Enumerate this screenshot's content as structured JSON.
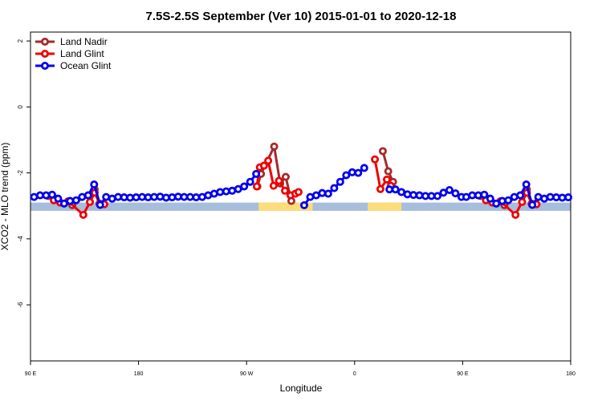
{
  "chart_data": {
    "type": "line",
    "title": "7.5S-2.5S September (Ver 10)   2015-01-01 to 2020-12-18",
    "x_label": "Longitude",
    "y_label": "XCO2 - MLO trend (ppm)",
    "xlim": [
      90,
      540
    ],
    "ylim": [
      -7.7,
      2.27
    ],
    "xticks": [
      {
        "value": 90,
        "label": "90 E"
      },
      180,
      {
        "value": 270,
        "label": "90 W"
      },
      {
        "value": 360,
        "label": "0"
      },
      {
        "value": 450,
        "label": "90 E"
      },
      {
        "value": 540,
        "label": "180"
      }
    ],
    "yticks": [
      2,
      0,
      -2,
      -4,
      -6
    ],
    "legend": "top-left",
    "band": {
      "y": [
        -3.15,
        -2.9
      ],
      "segments": [
        {
          "from": 90,
          "to": 540,
          "color": "#a6bddb"
        },
        {
          "from": 280,
          "to": 325,
          "color": "#fddc7a"
        },
        {
          "from": 371,
          "to": 399,
          "color": "#fddc7a"
        }
      ]
    },
    "series": [
      {
        "name": "Land Nadir",
        "color": "#a52a2a",
        "x": [
          104.7,
          110,
          124.8,
          143.5,
          200,
          279,
          282,
          293,
          298,
          302.6,
          307.3,
          340,
          383.5,
          388,
          392,
          430,
          464.7,
          470,
          484.8,
          503.5
        ],
        "values": [
          -2.7,
          -2.78,
          -2.98,
          -2.5,
          null,
          -2.41,
          -2.03,
          -1.2,
          -2.32,
          -2.12,
          -2.85,
          null,
          -1.34,
          -1.95,
          -2.27,
          null,
          -2.7,
          -2.78,
          -2.98,
          -2.5
        ]
      },
      {
        "name": "Land Glint",
        "color": "#ee0000",
        "x": [
          109.4,
          114.7,
          121.4,
          134,
          139.5,
          143.5,
          147.5,
          151.5,
          200,
          278.5,
          281,
          284.5,
          288,
          292.5,
          297,
          302,
          306.6,
          310.6,
          313.3,
          340,
          376.9,
          381.5,
          386.9,
          390.2,
          430,
          469.4,
          474.7,
          481.4,
          494,
          499.5,
          503.5,
          507.5,
          511.5
        ],
        "values": [
          -2.83,
          -2.9,
          -2.86,
          -3.27,
          -2.88,
          -2.6,
          -2.93,
          -2.95,
          null,
          -2.41,
          -1.83,
          -1.78,
          -1.63,
          -2.39,
          -2.24,
          -2.54,
          -2.68,
          -2.63,
          -2.58,
          null,
          -1.59,
          -2.49,
          -2.2,
          -2.39,
          null,
          -2.83,
          -2.9,
          -2.86,
          -3.27,
          -2.88,
          -2.6,
          -2.93,
          -2.95
        ]
      },
      {
        "name": "Ocean Glint",
        "color": "#0000ee",
        "x": [
          93,
          98,
          103,
          108,
          113,
          118,
          123,
          128,
          133,
          138,
          143,
          148,
          153,
          158,
          163,
          168,
          173,
          178,
          183,
          188,
          193,
          198,
          203,
          208,
          213,
          218,
          223,
          228,
          233,
          238,
          243,
          248,
          253,
          258,
          263,
          268,
          273,
          278,
          298,
          318,
          323,
          328,
          333,
          338,
          343,
          348,
          353,
          358,
          363,
          368,
          378,
          389,
          394,
          399,
          404,
          409,
          414,
          419,
          424,
          429,
          434,
          439,
          444,
          449,
          453,
          458,
          463,
          468,
          473,
          478,
          483,
          488,
          493,
          498,
          503,
          508,
          513,
          518,
          523,
          528,
          533,
          538
        ],
        "values": [
          -2.73,
          -2.68,
          -2.68,
          -2.66,
          -2.78,
          -2.93,
          -2.85,
          -2.83,
          -2.73,
          -2.68,
          -2.35,
          -2.97,
          -2.73,
          -2.78,
          -2.73,
          -2.74,
          -2.75,
          -2.74,
          -2.73,
          -2.74,
          -2.73,
          -2.72,
          -2.75,
          -2.74,
          -2.72,
          -2.73,
          -2.73,
          -2.74,
          -2.73,
          -2.68,
          -2.63,
          -2.58,
          -2.56,
          -2.54,
          -2.49,
          -2.41,
          -2.27,
          -2.03,
          null,
          -2.98,
          -2.73,
          -2.68,
          -2.61,
          -2.63,
          -2.46,
          -2.27,
          -2.07,
          -1.98,
          -2.0,
          -1.85,
          null,
          -2.5,
          -2.5,
          -2.58,
          -2.65,
          -2.67,
          -2.68,
          -2.7,
          -2.7,
          -2.7,
          -2.6,
          -2.52,
          -2.62,
          -2.73,
          -2.73,
          -2.68,
          -2.68,
          -2.66,
          -2.78,
          -2.93,
          -2.85,
          -2.83,
          -2.73,
          -2.68,
          -2.35,
          -2.97,
          -2.73,
          -2.78,
          -2.73,
          -2.74,
          -2.75,
          -2.74
        ]
      }
    ]
  }
}
